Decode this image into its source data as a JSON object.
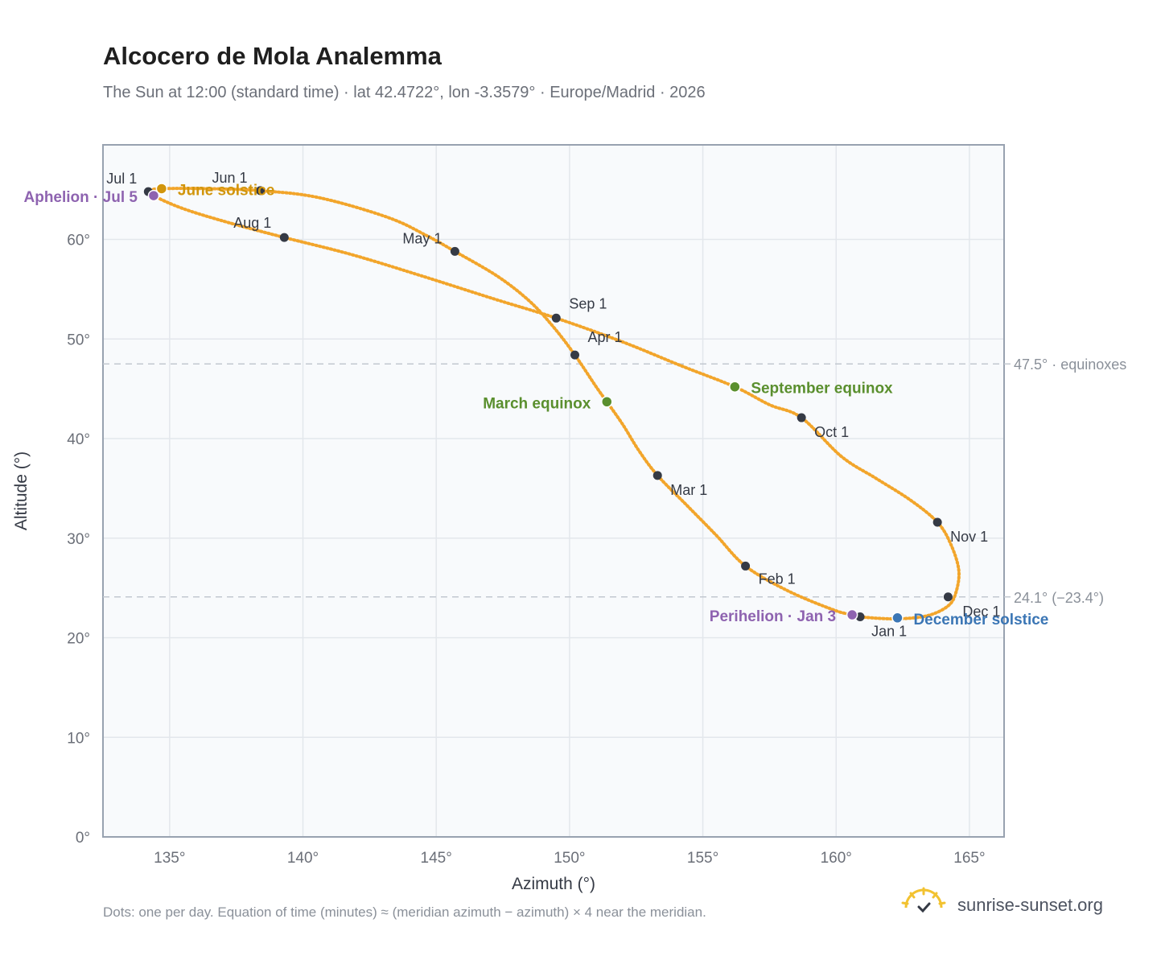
{
  "header": {
    "title": "Alcocero de Mola Analemma",
    "subtitle": "The Sun at 12:00 (standard time) · lat 42.4722°, lon -3.3579° · Europe/Madrid · 2026"
  },
  "footer": {
    "note": "Dots: one per day. Equation of time (minutes) ≈ (meridian azimuth − azimuth) × 4 near the meridian.",
    "brand": "sunrise-sunset.org"
  },
  "colors": {
    "curve": "#f2a52b",
    "month_marker": "#353a45",
    "aphelion": "#8e63b0",
    "perihelion": "#8e63b0",
    "march_equinox": "#5a8f2e",
    "september_equinox": "#5a8f2e",
    "june_solstice": "#d1950c",
    "december_solstice": "#3b76b5",
    "plot_bg": "#f8fafc",
    "grid": "#e3e7ec",
    "axis": "#98a2b0"
  },
  "chart_data": {
    "type": "scatter",
    "xlabel": "Azimuth (°)",
    "ylabel": "Altitude (°)",
    "xlim": [
      132.5,
      166.3
    ],
    "ylim": [
      0,
      69.5
    ],
    "xticks": [
      135,
      140,
      145,
      150,
      155,
      160,
      165
    ],
    "yticks": [
      0,
      10,
      20,
      30,
      40,
      50,
      60
    ],
    "x_tick_labels": [
      "135°",
      "140°",
      "145°",
      "150°",
      "155°",
      "160°",
      "165°"
    ],
    "y_tick_labels": [
      "0°",
      "10°",
      "20°",
      "30°",
      "40°",
      "50°",
      "60°"
    ],
    "grid": true,
    "reference_lines": [
      {
        "y": 47.5,
        "label": "47.5° · equinoxes"
      },
      {
        "y": 24.1,
        "label": "24.1° (−23.4°)"
      }
    ],
    "month_markers": [
      {
        "label": "Jan 1",
        "x": 160.9,
        "y": 22.1
      },
      {
        "label": "Feb 1",
        "x": 156.6,
        "y": 27.2
      },
      {
        "label": "Mar 1",
        "x": 153.3,
        "y": 36.3
      },
      {
        "label": "Apr 1",
        "x": 150.2,
        "y": 48.4
      },
      {
        "label": "May 1",
        "x": 145.7,
        "y": 58.8
      },
      {
        "label": "Jun 1",
        "x": 138.4,
        "y": 64.9
      },
      {
        "label": "Jul 1",
        "x": 134.2,
        "y": 64.8
      },
      {
        "label": "Aug 1",
        "x": 139.3,
        "y": 60.2
      },
      {
        "label": "Sep 1",
        "x": 149.5,
        "y": 52.1
      },
      {
        "label": "Oct 1",
        "x": 158.7,
        "y": 42.1
      },
      {
        "label": "Nov 1",
        "x": 163.8,
        "y": 31.6
      },
      {
        "label": "Dec 1",
        "x": 164.2,
        "y": 24.1
      }
    ],
    "events": [
      {
        "label": "Aphelion · Jul 5",
        "x": 134.4,
        "y": 64.4,
        "color": "#8e63b0"
      },
      {
        "label": "June solstice",
        "x": 134.7,
        "y": 65.1,
        "color": "#d1950c"
      },
      {
        "label": "March equinox",
        "x": 151.4,
        "y": 43.7,
        "color": "#5a8f2e"
      },
      {
        "label": "September equinox",
        "x": 156.2,
        "y": 45.2,
        "color": "#5a8f2e"
      },
      {
        "label": "Perihelion · Jan 3",
        "x": 160.6,
        "y": 22.3,
        "color": "#8e63b0"
      },
      {
        "label": "December solstice",
        "x": 162.3,
        "y": 22.0,
        "color": "#3b76b5"
      }
    ],
    "daily_positions": [
      [
        160.9,
        22.1
      ],
      [
        162.2,
        21.9
      ],
      [
        163.4,
        22.2
      ],
      [
        164.2,
        23.2
      ],
      [
        164.5,
        24.6
      ],
      [
        164.6,
        26.8
      ],
      [
        164.3,
        29.4
      ],
      [
        163.8,
        31.6
      ],
      [
        162.8,
        33.8
      ],
      [
        161.5,
        36.0
      ],
      [
        160.2,
        38.2
      ],
      [
        158.7,
        42.1
      ],
      [
        157.5,
        43.4
      ],
      [
        156.2,
        45.2
      ],
      [
        154.2,
        47.3
      ],
      [
        152.0,
        49.7
      ],
      [
        149.5,
        52.1
      ],
      [
        147.2,
        54.0
      ],
      [
        144.5,
        56.3
      ],
      [
        141.8,
        58.5
      ],
      [
        139.3,
        60.2
      ],
      [
        137.2,
        61.7
      ],
      [
        135.5,
        63.1
      ],
      [
        134.4,
        64.4
      ],
      [
        134.3,
        64.9
      ],
      [
        134.7,
        65.1
      ],
      [
        136.5,
        65.1
      ],
      [
        138.4,
        64.9
      ],
      [
        140.6,
        64.2
      ],
      [
        143.2,
        62.2
      ],
      [
        144.7,
        60.3
      ],
      [
        145.7,
        58.8
      ],
      [
        147.3,
        56.3
      ],
      [
        148.5,
        53.8
      ],
      [
        149.4,
        51.2
      ],
      [
        150.2,
        48.4
      ],
      [
        151.0,
        45.2
      ],
      [
        151.4,
        43.7
      ],
      [
        152.0,
        41.4
      ],
      [
        152.6,
        38.8
      ],
      [
        153.3,
        36.3
      ],
      [
        154.4,
        33.3
      ],
      [
        155.5,
        30.3
      ],
      [
        156.6,
        27.2
      ],
      [
        158.2,
        24.7
      ],
      [
        159.9,
        22.8
      ],
      [
        160.6,
        22.3
      ],
      [
        160.9,
        22.1
      ]
    ]
  }
}
